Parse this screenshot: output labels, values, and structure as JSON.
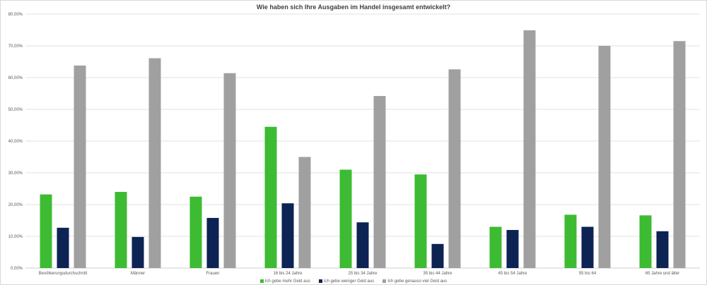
{
  "chart_data": {
    "type": "bar",
    "title": "Wie haben sich Ihre Ausgaben im Handel insgesamt entwickelt?",
    "xlabel": "",
    "ylabel": "",
    "ylim": [
      0,
      80
    ],
    "y_ticks": [
      "0,00%",
      "10,00%",
      "20,00%",
      "30,00%",
      "40,00%",
      "50,00%",
      "60,00%",
      "70,00%",
      "80,00%"
    ],
    "grid": true,
    "legend_position": "bottom",
    "categories": [
      "Bevölkerungsdurchschnitt",
      "Männer",
      "Frauen",
      "16 bis 24 Jahre",
      "25 bis 34 Jahre",
      "35 bis 44 Jahre",
      "45 bis 54 Jahre",
      "55 bis 64",
      "65 Jahre und älter"
    ],
    "series": [
      {
        "name": "Ich gebe mehr Geld aus",
        "color": "#3dbb33",
        "values": [
          23.2,
          24.0,
          22.5,
          44.5,
          31.0,
          29.5,
          13.0,
          16.8,
          16.6
        ]
      },
      {
        "name": "Ich gebe weniger Geld aus",
        "color": "#0c2354",
        "values": [
          12.7,
          9.8,
          15.8,
          20.4,
          14.4,
          7.6,
          12.0,
          13.0,
          11.6
        ]
      },
      {
        "name": "Ich gebe genauso viel Geld aus",
        "color": "#a0a0a0",
        "values": [
          63.8,
          66.1,
          61.4,
          35.0,
          54.2,
          62.6,
          74.9,
          70.0,
          71.5
        ]
      }
    ]
  }
}
